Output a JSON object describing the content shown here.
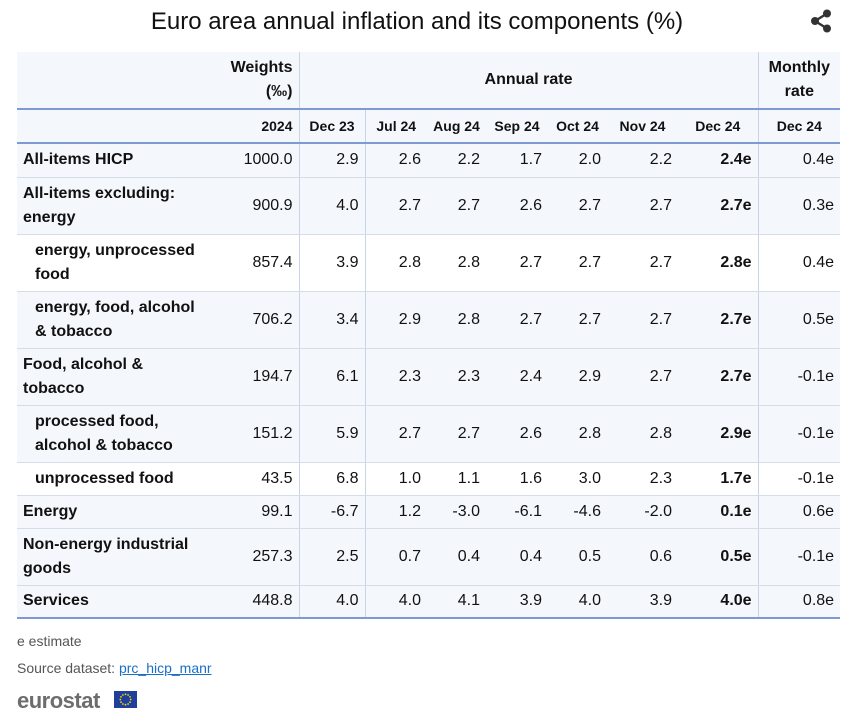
{
  "title": "Euro area annual inflation and its components (%)",
  "icons": {
    "share": "share-icon",
    "flag": "eu-flag-icon"
  },
  "colors": {
    "accent_line": "#7d9bd2",
    "header_bg": "#f4f7fc",
    "link": "#1a6fc9"
  },
  "chart_data": {
    "type": "table",
    "title": "Euro area annual inflation and its components (%)",
    "header_groups": {
      "weights": "Weights",
      "weights_unit": "(‰)",
      "annual": "Annual rate",
      "monthly": "Monthly",
      "monthly_2": "rate"
    },
    "columns": [
      "2024",
      "Dec 23",
      "Jul 24",
      "Aug 24",
      "Sep 24",
      "Oct 24",
      "Nov 24",
      "Dec 24",
      "Dec 24"
    ],
    "rows": [
      {
        "label": "All-items HICP",
        "cells": [
          "1000.0",
          "2.9",
          "2.6",
          "2.2",
          "1.7",
          "2.0",
          "2.2",
          "2.4e",
          "0.4e"
        ]
      },
      {
        "label": "All-items excluding: energy",
        "cells": [
          "900.9",
          "4.0",
          "2.7",
          "2.7",
          "2.6",
          "2.7",
          "2.7",
          "2.7e",
          "0.3e"
        ]
      },
      {
        "label": "energy, unprocessed food",
        "cells": [
          "857.4",
          "3.9",
          "2.8",
          "2.8",
          "2.7",
          "2.7",
          "2.7",
          "2.8e",
          "0.4e"
        ]
      },
      {
        "label": "energy, food, alcohol & tobacco",
        "cells": [
          "706.2",
          "3.4",
          "2.9",
          "2.8",
          "2.7",
          "2.7",
          "2.7",
          "2.7e",
          "0.5e"
        ]
      },
      {
        "label": "Food, alcohol & tobacco",
        "cells": [
          "194.7",
          "6.1",
          "2.3",
          "2.3",
          "2.4",
          "2.9",
          "2.7",
          "2.7e",
          "-0.1e"
        ]
      },
      {
        "label": "processed food, alcohol & tobacco",
        "cells": [
          "151.2",
          "5.9",
          "2.7",
          "2.7",
          "2.6",
          "2.8",
          "2.8",
          "2.9e",
          "-0.1e"
        ]
      },
      {
        "label": "unprocessed food",
        "cells": [
          "43.5",
          "6.8",
          "1.0",
          "1.1",
          "1.6",
          "3.0",
          "2.3",
          "1.7e",
          "-0.1e"
        ]
      },
      {
        "label": "Energy",
        "cells": [
          "99.1",
          "-6.7",
          "1.2",
          "-3.0",
          "-6.1",
          "-4.6",
          "-2.0",
          "0.1e",
          "0.6e"
        ]
      },
      {
        "label": "Non-energy industrial goods",
        "cells": [
          "257.3",
          "2.5",
          "0.7",
          "0.4",
          "0.4",
          "0.5",
          "0.6",
          "0.5e",
          "-0.1e"
        ]
      },
      {
        "label": "Services",
        "cells": [
          "448.8",
          "4.0",
          "4.0",
          "4.1",
          "3.9",
          "4.0",
          "3.9",
          "4.0e",
          "0.8e"
        ]
      }
    ]
  },
  "footer": {
    "note": "e estimate",
    "source_prefix": "Source dataset: ",
    "source_link": "prc_hicp_manr",
    "logo": "eurostat"
  }
}
